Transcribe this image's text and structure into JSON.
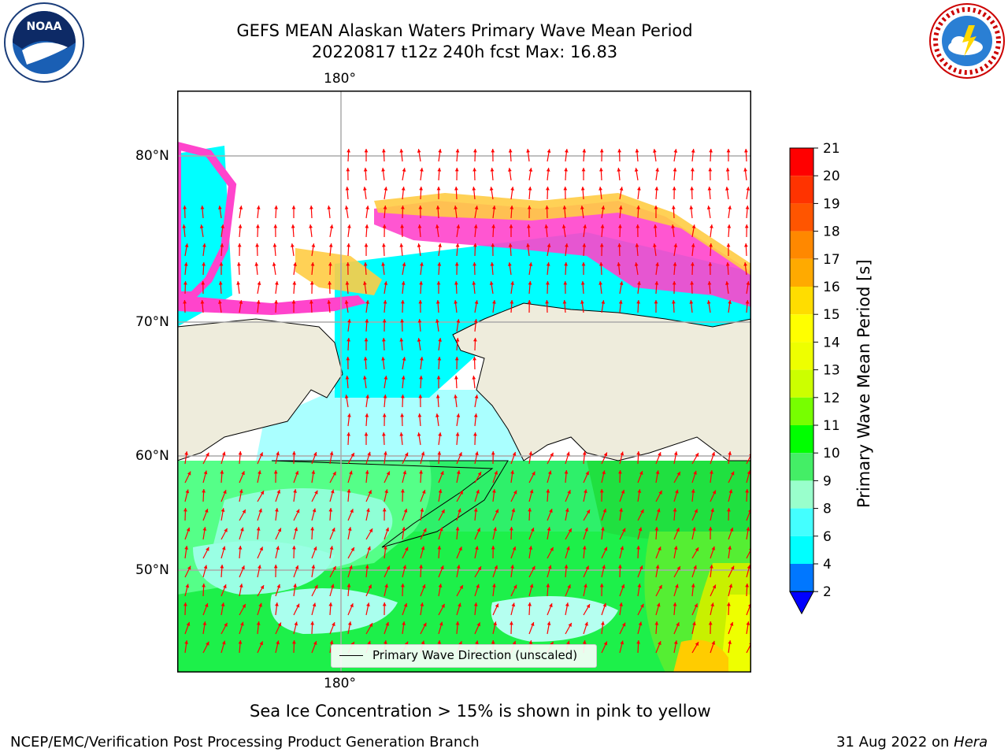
{
  "title": {
    "line1": "GEFS MEAN Alaskan Waters Primary Wave Mean Period",
    "line2": "20220817 t12z 240h fcst   Max: 16.83"
  },
  "map": {
    "lon_label_top": "180°",
    "lon_label_bottom": "180°",
    "lat_labels": [
      "80°N",
      "70°N",
      "60°N",
      "50°N"
    ],
    "legend_label": "Primary Wave Direction (unscaled)",
    "colors": {
      "land": "#eeecdc",
      "ocean_dominant": "#00ff55",
      "ice_edge": "#ff44cc",
      "ice_inner": "#ffcc44",
      "arrows": "#ff0000"
    }
  },
  "colorbar": {
    "label": "Primary Wave Mean Period [s]",
    "ticks": [
      "21",
      "20",
      "19",
      "18",
      "17",
      "16",
      "15",
      "14",
      "13",
      "12",
      "11",
      "10",
      "9",
      "8",
      "6",
      "4",
      "2"
    ],
    "colors": [
      "#ff0000",
      "#ff3300",
      "#ff5500",
      "#ff8800",
      "#ffaa00",
      "#ffdd00",
      "#ffff00",
      "#eeff00",
      "#ccff00",
      "#77ff00",
      "#00ff00",
      "#44ee66",
      "#99ffcc",
      "#44ffff",
      "#00ffff",
      "#0077ff",
      "#0000ff"
    ]
  },
  "caption": "Sea Ice Concentration > 15% is shown in pink to yellow",
  "footer": {
    "left": "NCEP/EMC/Verification Post Processing Product Generation Branch",
    "right_date": "31 Aug 2022 on ",
    "right_machine": "Hera"
  },
  "logos": {
    "left": "noaa-logo",
    "right": "national-weather-service-logo"
  }
}
